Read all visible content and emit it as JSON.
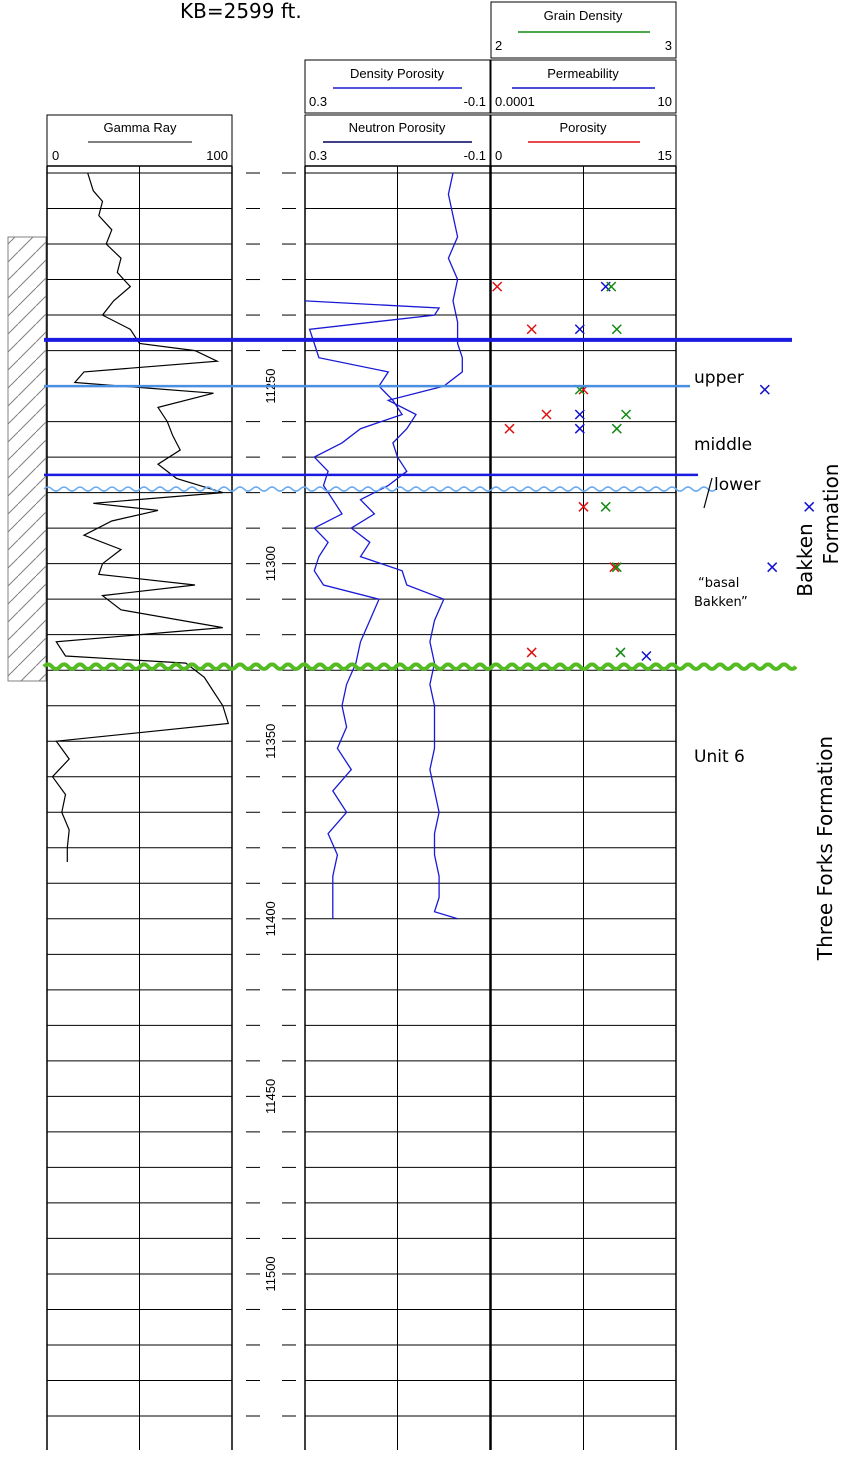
{
  "kb_label": "KB=2599 ft.",
  "tracks": {
    "gamma_ray": {
      "name": "Gamma Ray",
      "min": "0",
      "max": "100"
    },
    "density_porosity": {
      "name": "Density Porosity",
      "min": "0.3",
      "max": "-0.1"
    },
    "neutron_porosity": {
      "name": "Neutron Porosity",
      "min": "0.3",
      "max": "-0.1"
    },
    "grain_density": {
      "name": "Grain Density",
      "min": "2",
      "max": "3"
    },
    "permeability": {
      "name": "Permeability",
      "min": "0.0001",
      "max": "10"
    },
    "porosity": {
      "name": "Porosity",
      "min": "0",
      "max": "15"
    }
  },
  "depth_labels": [
    "11250",
    "11300",
    "11350",
    "11400",
    "11450",
    "11500"
  ],
  "formations": {
    "upper": "upper",
    "middle": "middle",
    "lower": "lower",
    "basal_line1": "“basal",
    "basal_line2": "Bakken”",
    "unit6": "Unit 6",
    "bakken_line1": "Bakken",
    "bakken_line2": "Formation",
    "three_forks": "Three Forks Formation"
  },
  "colors": {
    "gamma": "#000000",
    "log_blue": "#1a1ad6",
    "porosity": "#e01010",
    "permeability": "#1010d0",
    "grain_density": "#108a10",
    "bakken_top": "#1a1ae0",
    "upper_base": "#4a8fe0",
    "wavy_blue": "#6aaaf0",
    "unconformity": "#55bb22"
  },
  "chart_data": {
    "type": "well-log",
    "depth_unit": "ft",
    "depth_range": [
      11190,
      11540
    ],
    "gamma_ray": {
      "range": [
        0,
        100
      ],
      "depth": [
        11190,
        11195,
        11198,
        11202,
        11206,
        11210,
        11214,
        11218,
        11222,
        11226,
        11230,
        11234,
        11238,
        11240,
        11243,
        11246,
        11249,
        11252,
        11256,
        11260,
        11264,
        11268,
        11272,
        11276,
        11280,
        11283,
        11285,
        11288,
        11292,
        11296,
        11300,
        11303,
        11306,
        11309,
        11313,
        11318,
        11322,
        11326,
        11328,
        11332,
        11336,
        11340,
        11345,
        11350,
        11355,
        11360,
        11365,
        11370,
        11375,
        11380,
        11384
      ],
      "value": [
        22,
        25,
        30,
        28,
        35,
        32,
        40,
        38,
        45,
        36,
        30,
        45,
        50,
        80,
        92,
        20,
        15,
        90,
        60,
        65,
        68,
        72,
        60,
        70,
        95,
        25,
        60,
        35,
        20,
        40,
        30,
        28,
        80,
        30,
        40,
        95,
        5,
        10,
        75,
        85,
        90,
        95,
        98,
        5,
        12,
        3,
        10,
        8,
        12,
        11,
        11
      ]
    },
    "neutron_porosity": {
      "range": [
        0.3,
        -0.1
      ],
      "depth": [
        11190,
        11196,
        11202,
        11208,
        11214,
        11220,
        11226,
        11232,
        11238,
        11242,
        11246,
        11250,
        11254,
        11258,
        11262,
        11266,
        11270,
        11274,
        11278,
        11282,
        11286,
        11290,
        11294,
        11298,
        11302,
        11306,
        11310,
        11316,
        11322,
        11328,
        11334,
        11340,
        11346,
        11352,
        11358,
        11364,
        11370,
        11376,
        11382,
        11388,
        11394,
        11398,
        11400
      ],
      "value": [
        -0.02,
        -0.01,
        -0.02,
        -0.03,
        -0.01,
        -0.03,
        -0.02,
        -0.03,
        -0.03,
        -0.04,
        -0.04,
        0.0,
        0.12,
        0.06,
        0.08,
        0.11,
        0.1,
        0.08,
        0.12,
        0.18,
        0.15,
        0.2,
        0.16,
        0.18,
        0.09,
        0.08,
        0.0,
        0.02,
        0.03,
        0.02,
        0.03,
        0.02,
        0.02,
        0.02,
        0.03,
        0.02,
        0.01,
        0.02,
        0.02,
        0.01,
        0.01,
        0.02,
        -0.03
      ]
    },
    "density_porosity": {
      "range": [
        0.3,
        -0.1
      ],
      "depth": [
        11226,
        11228,
        11230,
        11234,
        11238,
        11242,
        11246,
        11250,
        11254,
        11258,
        11262,
        11266,
        11270,
        11274,
        11278,
        11282,
        11286,
        11290,
        11294,
        11298,
        11302,
        11306,
        11310,
        11316,
        11322,
        11328,
        11334,
        11340,
        11346,
        11352,
        11358,
        11364,
        11370,
        11376,
        11382,
        11388,
        11394,
        11398,
        11400
      ],
      "value": [
        0.3,
        0.01,
        0.02,
        0.29,
        0.28,
        0.27,
        0.12,
        0.14,
        0.11,
        0.09,
        0.18,
        0.22,
        0.28,
        0.25,
        0.26,
        0.24,
        0.22,
        0.28,
        0.25,
        0.27,
        0.28,
        0.26,
        0.14,
        0.16,
        0.18,
        0.19,
        0.21,
        0.22,
        0.21,
        0.23,
        0.2,
        0.24,
        0.21,
        0.25,
        0.23,
        0.24,
        0.24,
        0.24,
        0.24
      ]
    },
    "porosity_points": {
      "depth": [
        11222,
        11234,
        11251,
        11258,
        11262,
        11284,
        11301,
        11325
      ],
      "value": [
        0.5,
        3.3,
        7.5,
        4.5,
        1.5,
        7.5,
        10,
        3.3
      ]
    },
    "permeability_points": {
      "depth": [
        11222,
        11234,
        11251,
        11258,
        11262,
        11284,
        11301,
        11326
      ],
      "value_log10": [
        -0.9,
        -1.6,
        3.4,
        -1.6,
        -1.6,
        4.6,
        3.6,
        0.2
      ]
    },
    "grain_density_points": {
      "depth": [
        11222,
        11234,
        11251,
        11258,
        11262,
        11284,
        11301,
        11325
      ],
      "value": [
        2.65,
        2.68,
        2.48,
        2.73,
        2.68,
        2.62,
        2.68,
        2.7
      ]
    },
    "horizons": [
      {
        "depth": 11237,
        "style": "bakken-top"
      },
      {
        "depth": 11250,
        "style": "upper-base"
      },
      {
        "depth": 11275,
        "style": "lower-top"
      },
      {
        "depth": 11279,
        "style": "wavy-blue"
      },
      {
        "depth": 11329,
        "style": "unconformity"
      }
    ]
  }
}
